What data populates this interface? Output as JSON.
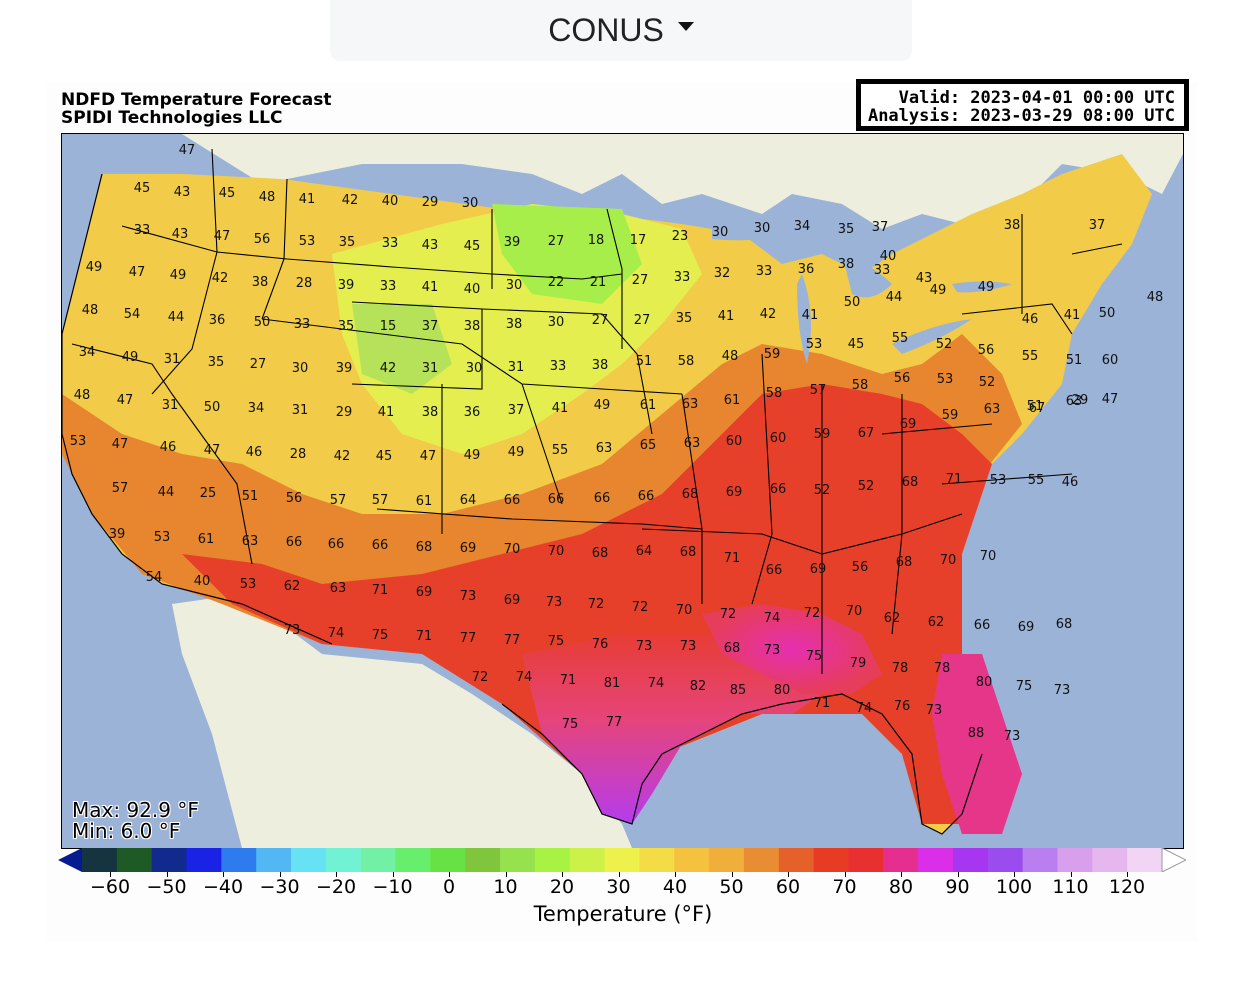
{
  "region_selector": {
    "label": "CONUS"
  },
  "header": {
    "title_line1": "NDFD Temperature Forecast",
    "title_line2": "SPIDI Technologies LLC",
    "valid": "Valid: 2023-04-01 00:00 UTC",
    "analysis": "Analysis: 2023-03-29 08:00 UTC"
  },
  "stats": {
    "max": "Max: 92.9 °F",
    "min": "Min: 6.0 °F"
  },
  "colorbar": {
    "label": "Temperature (°F)",
    "ticks": [
      "−60",
      "−50",
      "−40",
      "−30",
      "−20",
      "−10",
      "0",
      "10",
      "20",
      "30",
      "40",
      "50",
      "60",
      "70",
      "80",
      "90",
      "100",
      "110",
      "120"
    ],
    "colors": [
      "#061b8f",
      "#15343f",
      "#1d5a25",
      "#12298d",
      "#1a22e6",
      "#2e7bf0",
      "#52b7f2",
      "#66e2f4",
      "#72f2d4",
      "#72f0a5",
      "#66ee6c",
      "#66e244",
      "#7fc63c",
      "#96e24e",
      "#a8f244",
      "#ccf24a",
      "#eef04c",
      "#f4dc46",
      "#f4c23f",
      "#f0ae3b",
      "#e88d33",
      "#e6612a",
      "#e83b24",
      "#e83030",
      "#e62e8e",
      "#da2ee8",
      "#a636f0",
      "#9b4cee",
      "#b97ff0",
      "#d8a0ec",
      "#e6b6ee",
      "#f2d4f4",
      "#ffffff"
    ]
  },
  "map_values": [
    "47",
    "45",
    "43",
    "45",
    "48",
    "41",
    "42",
    "40",
    "29",
    "30",
    "33",
    "43",
    "47",
    "56",
    "53",
    "35",
    "33",
    "43",
    "45",
    "39",
    "27",
    "18",
    "17",
    "23",
    "30",
    "30",
    "34",
    "35",
    "37",
    "33",
    "49",
    "47",
    "49",
    "42",
    "38",
    "28",
    "39",
    "33",
    "41",
    "40",
    "30",
    "22",
    "21",
    "27",
    "33",
    "32",
    "33",
    "36",
    "38",
    "40",
    "43",
    "38",
    "37",
    "48",
    "54",
    "44",
    "36",
    "50",
    "33",
    "35",
    "15",
    "37",
    "38",
    "38",
    "30",
    "27",
    "27",
    "35",
    "41",
    "42",
    "41",
    "50",
    "44",
    "49",
    "49",
    "46",
    "41",
    "50",
    "48",
    "34",
    "49",
    "31",
    "35",
    "27",
    "30",
    "39",
    "42",
    "31",
    "30",
    "31",
    "33",
    "38",
    "51",
    "58",
    "48",
    "59",
    "53",
    "45",
    "55",
    "52",
    "56",
    "55",
    "51",
    "60",
    "48",
    "47",
    "31",
    "50",
    "34",
    "31",
    "29",
    "41",
    "38",
    "36",
    "37",
    "41",
    "49",
    "61",
    "63",
    "61",
    "58",
    "57",
    "58",
    "56",
    "53",
    "52",
    "51",
    "29",
    "53",
    "47",
    "46",
    "47",
    "46",
    "28",
    "42",
    "45",
    "47",
    "49",
    "49",
    "55",
    "63",
    "65",
    "63",
    "60",
    "60",
    "59",
    "67",
    "69",
    "59",
    "63",
    "67",
    "63",
    "47",
    "57",
    "44",
    "25",
    "51",
    "56",
    "57",
    "57",
    "61",
    "64",
    "66",
    "66",
    "66",
    "66",
    "68",
    "69",
    "66",
    "52",
    "52",
    "68",
    "71",
    "53",
    "55",
    "46",
    "39",
    "53",
    "61",
    "63",
    "66",
    "66",
    "66",
    "68",
    "69",
    "70",
    "70",
    "68",
    "64",
    "68",
    "71",
    "66",
    "69",
    "56",
    "68",
    "70",
    "70",
    "54",
    "40",
    "53",
    "62",
    "63",
    "71",
    "69",
    "73",
    "69",
    "73",
    "72",
    "72",
    "70",
    "72",
    "74",
    "72",
    "70",
    "62",
    "62",
    "66",
    "69",
    "68",
    "73",
    "74",
    "75",
    "71",
    "77",
    "77",
    "75",
    "76",
    "73",
    "73",
    "68",
    "73",
    "75",
    "79",
    "78",
    "78",
    "80",
    "75",
    "73",
    "72",
    "74",
    "71",
    "81",
    "74",
    "82",
    "85",
    "80",
    "71",
    "74",
    "76",
    "73",
    "88",
    "73",
    "75",
    "77"
  ]
}
